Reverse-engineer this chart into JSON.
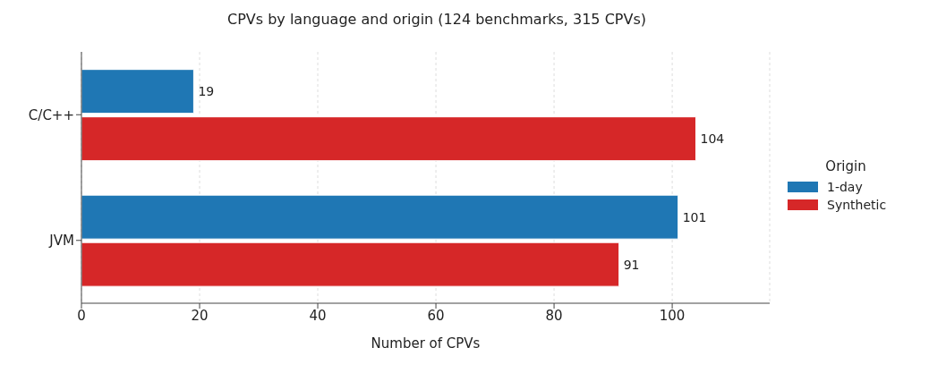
{
  "chart_data": {
    "type": "bar",
    "orientation": "horizontal",
    "title": "CPVs by language and origin (124 benchmarks, 315 CPVs)",
    "xlabel": "Number of CPVs",
    "legend_title": "Origin",
    "categories": [
      "C/C++",
      "JVM"
    ],
    "series": [
      {
        "name": "1-day",
        "color": "#1f77b4",
        "values": [
          19,
          101
        ]
      },
      {
        "name": "Synthetic",
        "color": "#d62728",
        "values": [
          104,
          91
        ]
      }
    ],
    "xlim": [
      0,
      116.5
    ],
    "xticks": [
      0,
      20,
      40,
      60,
      80,
      100
    ],
    "grid": "x",
    "legend": "right",
    "data_labels": true
  }
}
